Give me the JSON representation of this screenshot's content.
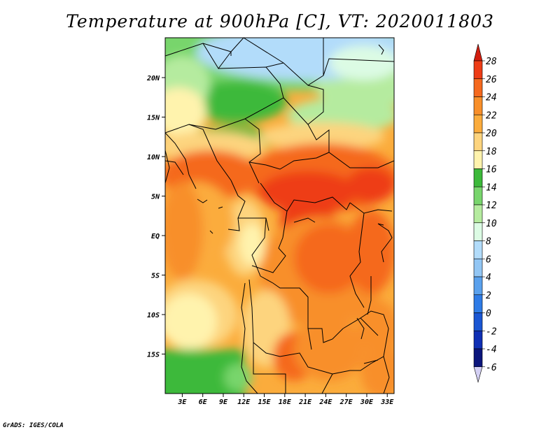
{
  "title": "Temperature at 900hPa [C], VT: 2020011803",
  "footer": "GrADS: IGES/COLA",
  "map": {
    "variable": "Temperature at 900hPa",
    "units": "C",
    "valid_time": "2020011803",
    "lat_ticks": [
      "20N",
      "15N",
      "10N",
      "5N",
      "EQ",
      "5S",
      "10S",
      "15S"
    ],
    "lat_values": [
      20,
      15,
      10,
      5,
      0,
      -5,
      -10,
      -15
    ],
    "lon_ticks": [
      "3E",
      "6E",
      "9E",
      "12E",
      "15E",
      "18E",
      "21E",
      "24E",
      "27E",
      "30E",
      "33E"
    ],
    "lon_values": [
      3,
      6,
      9,
      12,
      15,
      18,
      21,
      24,
      27,
      30,
      33
    ]
  },
  "colorbar": {
    "levels": [
      "28",
      "26",
      "24",
      "22",
      "20",
      "18",
      "16",
      "14",
      "12",
      "10",
      "8",
      "6",
      "4",
      "2",
      "0",
      "-2",
      "-4",
      "-6"
    ],
    "colors": [
      "#d21e0f",
      "#ee3c16",
      "#f5691e",
      "#f88f2a",
      "#fbac3c",
      "#fdd47e",
      "#fff3ad",
      "#3cb93a",
      "#78d56c",
      "#b5eb9f",
      "#dcfbe4",
      "#b2dcfa",
      "#92c6f4",
      "#5aa1ed",
      "#2e7be6",
      "#1a56d3",
      "#0f2fb4",
      "#0b157c",
      "#d4d0f4"
    ]
  }
}
